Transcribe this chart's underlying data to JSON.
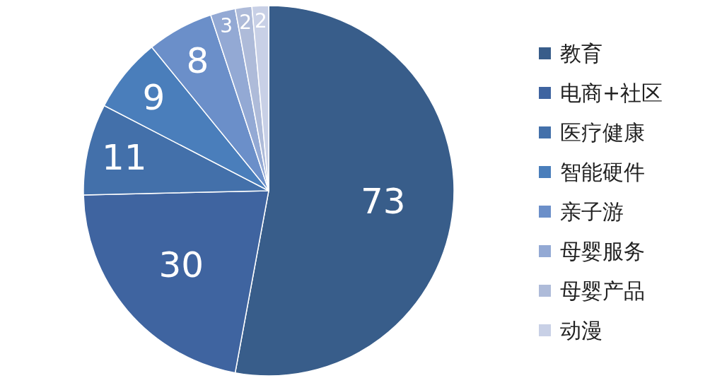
{
  "chart_data": {
    "type": "pie",
    "categories": [
      "教育",
      "电商+社区",
      "医疗健康",
      "智能硬件",
      "亲子游",
      "母婴服务",
      "母婴产品",
      "动漫"
    ],
    "values": [
      73,
      30,
      11,
      9,
      8,
      3,
      2,
      2
    ],
    "colors": [
      "#385d8a",
      "#3f64a0",
      "#4370aa",
      "#4a7ebb",
      "#6b8fc9",
      "#93a9d4",
      "#aebbd9",
      "#c8d0e6"
    ],
    "data_labels": true,
    "legend": "right"
  }
}
